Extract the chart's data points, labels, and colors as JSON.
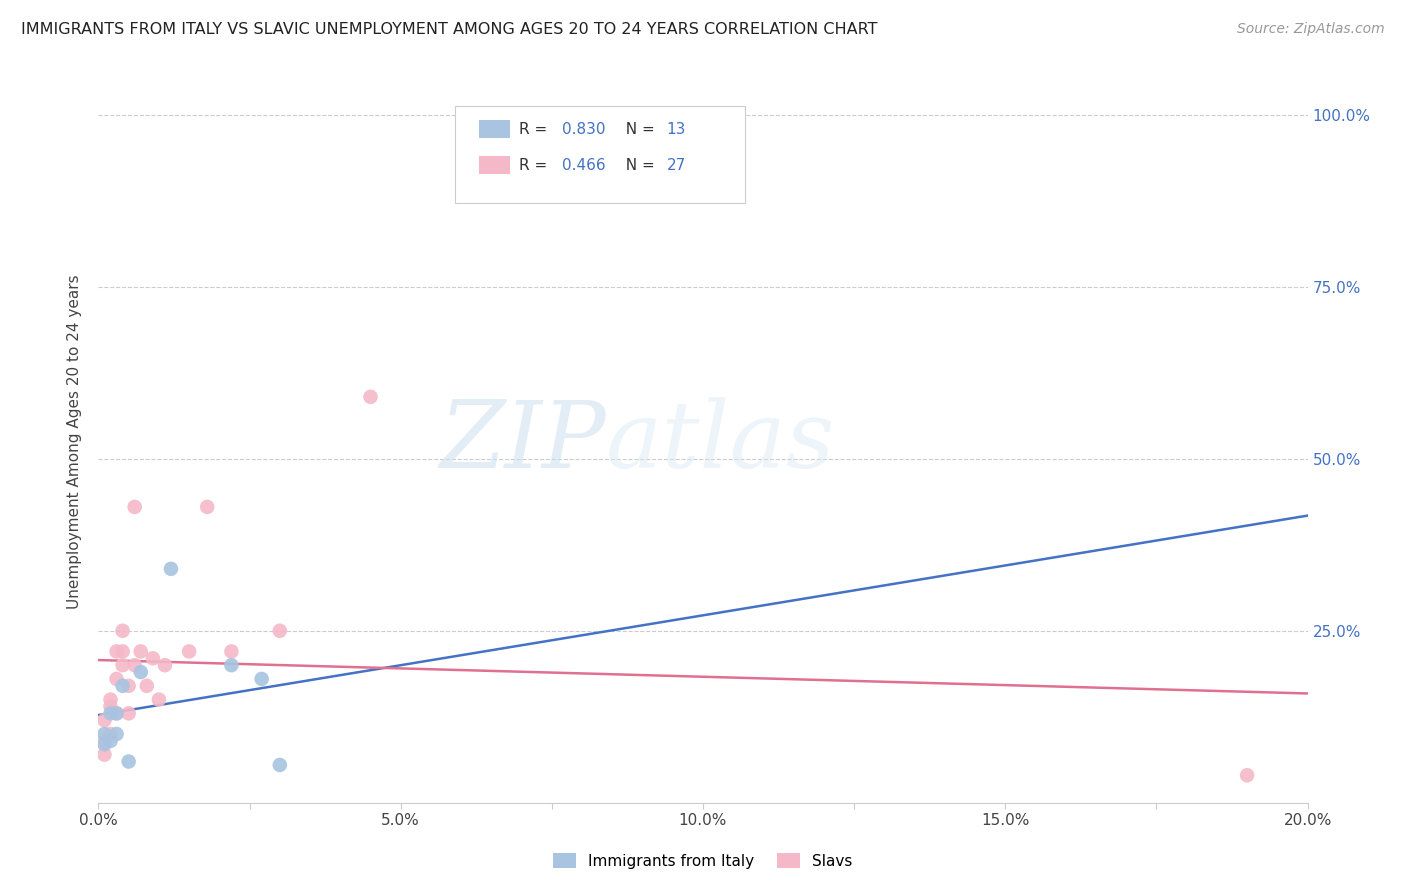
{
  "title": "IMMIGRANTS FROM ITALY VS SLAVIC UNEMPLOYMENT AMONG AGES 20 TO 24 YEARS CORRELATION CHART",
  "source": "Source: ZipAtlas.com",
  "ylabel": "Unemployment Among Ages 20 to 24 years",
  "xlim": [
    0.0,
    0.2
  ],
  "ylim": [
    0.0,
    1.05
  ],
  "xticks": [
    0.0,
    0.025,
    0.05,
    0.075,
    0.1,
    0.125,
    0.15,
    0.175,
    0.2
  ],
  "xticklabels": [
    "0.0%",
    "",
    "5.0%",
    "",
    "10.0%",
    "",
    "15.0%",
    "",
    "20.0%"
  ],
  "yticks": [
    0.0,
    0.25,
    0.5,
    0.75,
    1.0
  ],
  "yticklabels": [
    "",
    "25.0%",
    "50.0%",
    "75.0%",
    "100.0%"
  ],
  "italy_x": [
    0.001,
    0.001,
    0.002,
    0.002,
    0.003,
    0.003,
    0.004,
    0.005,
    0.007,
    0.012,
    0.022,
    0.027,
    0.03
  ],
  "italy_y": [
    0.085,
    0.1,
    0.09,
    0.13,
    0.1,
    0.13,
    0.17,
    0.06,
    0.19,
    0.34,
    0.2,
    0.18,
    0.055
  ],
  "slavic_x": [
    0.001,
    0.001,
    0.001,
    0.002,
    0.002,
    0.002,
    0.003,
    0.003,
    0.003,
    0.004,
    0.004,
    0.004,
    0.005,
    0.005,
    0.006,
    0.006,
    0.007,
    0.008,
    0.009,
    0.01,
    0.011,
    0.015,
    0.018,
    0.022,
    0.03,
    0.045,
    0.19
  ],
  "slavic_y": [
    0.07,
    0.09,
    0.12,
    0.1,
    0.14,
    0.15,
    0.13,
    0.18,
    0.22,
    0.2,
    0.22,
    0.25,
    0.13,
    0.17,
    0.2,
    0.43,
    0.22,
    0.17,
    0.21,
    0.15,
    0.2,
    0.22,
    0.43,
    0.22,
    0.25,
    0.59,
    0.04
  ],
  "italy_color": "#a8c4e0",
  "slavic_color": "#f4b8c8",
  "italy_line_color": "#4472c4",
  "slavic_line_color": "#e07090",
  "italy_R": 0.83,
  "italy_N": 13,
  "slavic_R": 0.466,
  "slavic_N": 27,
  "marker_size": 110,
  "watermark_zip": "ZIP",
  "watermark_atlas": "atlas",
  "legend_italy": "Immigrants from Italy",
  "legend_slavs": "Slavs",
  "background_color": "#ffffff",
  "grid_color": "#cccccc"
}
